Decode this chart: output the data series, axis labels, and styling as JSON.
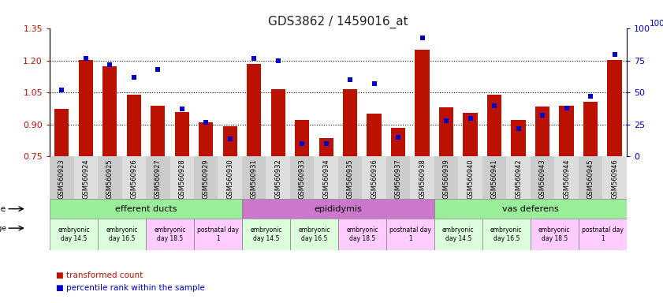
{
  "title": "GDS3862 / 1459016_at",
  "samples": [
    "GSM560923",
    "GSM560924",
    "GSM560925",
    "GSM560926",
    "GSM560927",
    "GSM560928",
    "GSM560929",
    "GSM560930",
    "GSM560931",
    "GSM560932",
    "GSM560933",
    "GSM560934",
    "GSM560935",
    "GSM560936",
    "GSM560937",
    "GSM560938",
    "GSM560939",
    "GSM560940",
    "GSM560941",
    "GSM560942",
    "GSM560943",
    "GSM560944",
    "GSM560945",
    "GSM560946"
  ],
  "transformed_count": [
    0.975,
    1.205,
    1.175,
    1.04,
    0.99,
    0.96,
    0.91,
    0.89,
    1.185,
    1.065,
    0.92,
    0.835,
    1.065,
    0.95,
    0.885,
    1.25,
    0.98,
    0.955,
    1.04,
    0.92,
    0.985,
    0.99,
    1.005,
    1.205
  ],
  "percentile_rank": [
    52,
    77,
    72,
    62,
    68,
    37,
    27,
    14,
    77,
    75,
    10,
    10,
    60,
    57,
    15,
    93,
    28,
    30,
    40,
    22,
    32,
    38,
    47,
    80
  ],
  "ylim_left": [
    0.75,
    1.35
  ],
  "ylim_right": [
    0,
    100
  ],
  "yticks_left": [
    0.75,
    0.9,
    1.05,
    1.2,
    1.35
  ],
  "yticks_right": [
    0,
    25,
    50,
    75,
    100
  ],
  "hlines": [
    0.9,
    1.05,
    1.2
  ],
  "bar_color": "#BB1100",
  "marker_color": "#0000CC",
  "tissue_groups": [
    {
      "label": "efferent ducts",
      "start": 0,
      "end": 8,
      "color": "#99EE99"
    },
    {
      "label": "epididymis",
      "start": 8,
      "end": 16,
      "color": "#CC77CC"
    },
    {
      "label": "vas deferens",
      "start": 16,
      "end": 24,
      "color": "#99EE99"
    }
  ],
  "dev_stage_groups": [
    {
      "label": "embryonic\nday 14.5",
      "start": 0,
      "end": 2,
      "color": "#DDFEDD"
    },
    {
      "label": "embryonic\nday 16.5",
      "start": 2,
      "end": 4,
      "color": "#DDFEDD"
    },
    {
      "label": "embryonic\nday 18.5",
      "start": 4,
      "end": 6,
      "color": "#FFCCFF"
    },
    {
      "label": "postnatal day\n1",
      "start": 6,
      "end": 8,
      "color": "#FFCCFF"
    },
    {
      "label": "embryonic\nday 14.5",
      "start": 8,
      "end": 10,
      "color": "#DDFEDD"
    },
    {
      "label": "embryonic\nday 16.5",
      "start": 10,
      "end": 12,
      "color": "#DDFEDD"
    },
    {
      "label": "embryonic\nday 18.5",
      "start": 12,
      "end": 14,
      "color": "#FFCCFF"
    },
    {
      "label": "postnatal day\n1",
      "start": 14,
      "end": 16,
      "color": "#FFCCFF"
    },
    {
      "label": "embryonic\nday 14.5",
      "start": 16,
      "end": 18,
      "color": "#DDFEDD"
    },
    {
      "label": "embryonic\nday 16.5",
      "start": 18,
      "end": 20,
      "color": "#DDFEDD"
    },
    {
      "label": "embryonic\nday 18.5",
      "start": 20,
      "end": 22,
      "color": "#FFCCFF"
    },
    {
      "label": "postnatal day\n1",
      "start": 22,
      "end": 24,
      "color": "#FFCCFF"
    }
  ]
}
